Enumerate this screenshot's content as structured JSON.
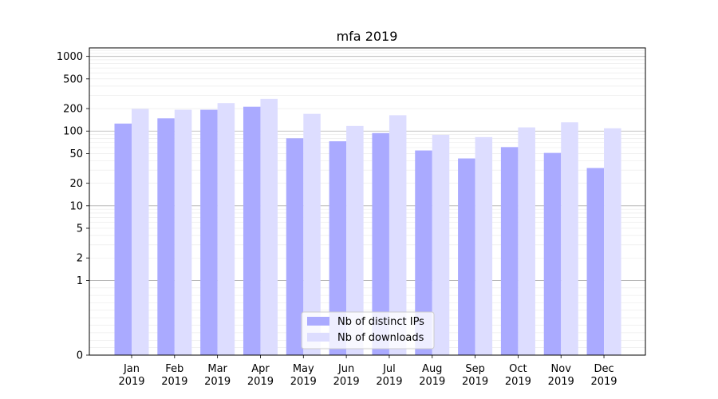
{
  "chart_data": {
    "type": "bar",
    "title": "mfa 2019",
    "xlabel": "",
    "ylabel": "",
    "yscale": "symlog",
    "ylim": [
      0,
      1300
    ],
    "grid": true,
    "legend_position": "bottom-center",
    "categories": [
      "Jan\n2019",
      "Feb\n2019",
      "Mar\n2019",
      "Apr\n2019",
      "May\n2019",
      "Jun\n2019",
      "Jul\n2019",
      "Aug\n2019",
      "Sep\n2019",
      "Oct\n2019",
      "Nov\n2019",
      "Dec\n2019"
    ],
    "y_ticks": [
      {
        "value": 0,
        "label": "0"
      },
      {
        "value": 1,
        "label": "1"
      },
      {
        "value": 2,
        "label": "2"
      },
      {
        "value": 5,
        "label": "5"
      },
      {
        "value": 10,
        "label": "10"
      },
      {
        "value": 20,
        "label": "20"
      },
      {
        "value": 50,
        "label": "50"
      },
      {
        "value": 100,
        "label": "100"
      },
      {
        "value": 200,
        "label": "200"
      },
      {
        "value": 500,
        "label": "500"
      },
      {
        "value": 1000,
        "label": "1000"
      }
    ],
    "series": [
      {
        "name": "Nb of distinct IPs",
        "color": "#aaaaff",
        "values": [
          126,
          148,
          193,
          212,
          80,
          73,
          94,
          55,
          43,
          61,
          51,
          32
        ]
      },
      {
        "name": "Nb of downloads",
        "color": "#ddddff",
        "values": [
          198,
          193,
          237,
          270,
          170,
          117,
          163,
          89,
          83,
          112,
          131,
          109
        ]
      }
    ]
  }
}
